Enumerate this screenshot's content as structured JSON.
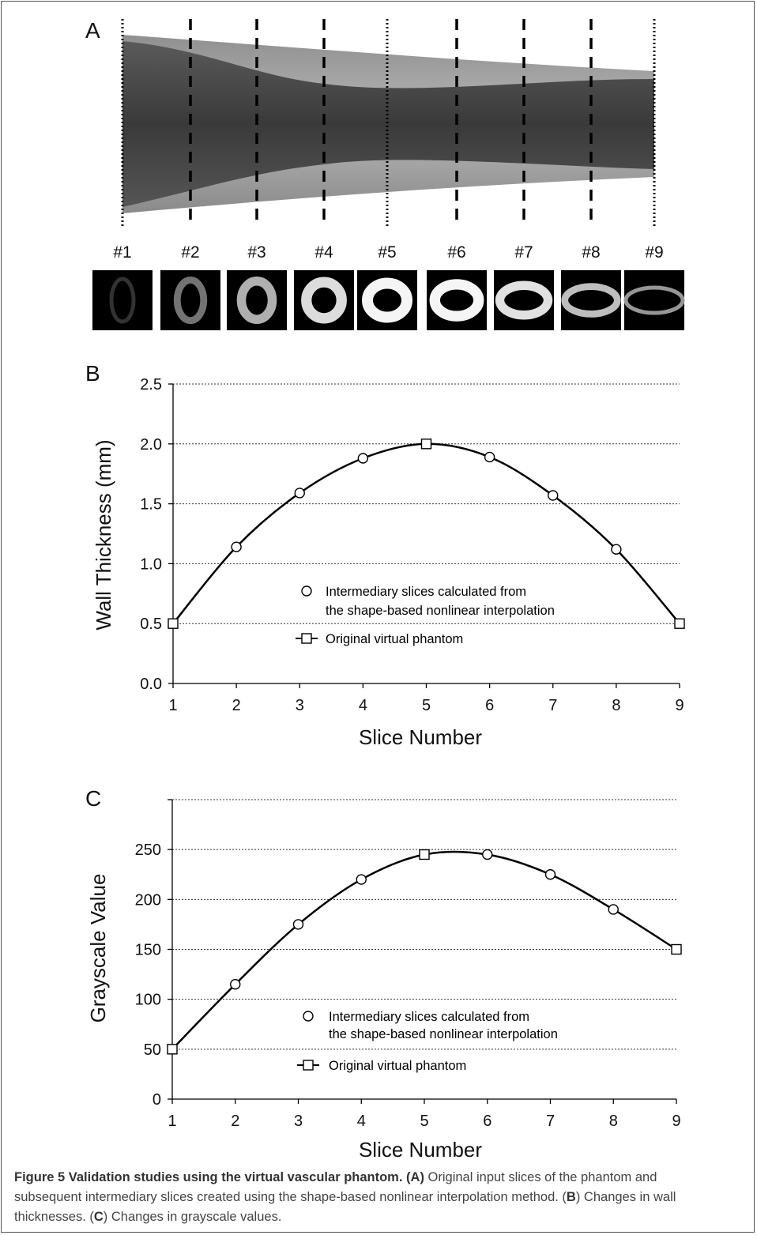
{
  "panel_a": {
    "label": "A",
    "slice_labels": [
      "#1",
      "#2",
      "#3",
      "#4",
      "#5",
      "#6",
      "#7",
      "#8",
      "#9"
    ],
    "ring_gray_levels": [
      50,
      115,
      175,
      220,
      245,
      245,
      225,
      190,
      150
    ],
    "ring_wall_thickness_mm": [
      0.5,
      1.14,
      1.59,
      1.88,
      2.0,
      1.89,
      1.57,
      1.12,
      0.5
    ]
  },
  "chart_data": [
    {
      "panel_label": "B",
      "type": "line",
      "x": [
        1,
        2,
        3,
        4,
        5,
        6,
        7,
        8,
        9
      ],
      "series": [
        {
          "name": "Intermediary slices calculated from the shape-based nonlinear interpolation",
          "marker": "circle",
          "points": [
            [
              2,
              1.14
            ],
            [
              3,
              1.59
            ],
            [
              4,
              1.88
            ],
            [
              6,
              1.89
            ],
            [
              7,
              1.57
            ],
            [
              8,
              1.12
            ]
          ]
        },
        {
          "name": "Original virtual phantom",
          "marker": "square",
          "points": [
            [
              1,
              0.5
            ],
            [
              5,
              2.0
            ],
            [
              9,
              0.5
            ]
          ]
        }
      ],
      "curve": [
        0.5,
        1.14,
        1.59,
        1.88,
        2.0,
        1.89,
        1.57,
        1.12,
        0.5
      ],
      "xlabel": "Slice Number",
      "ylabel": "Wall Thickness (mm)",
      "xlim": [
        1,
        9
      ],
      "ylim": [
        0,
        2.5
      ],
      "yticks": [
        "0.0",
        "0.5",
        "1.0",
        "1.5",
        "2.0",
        "2.5"
      ],
      "xticks": [
        "1",
        "2",
        "3",
        "4",
        "5",
        "6",
        "7",
        "8",
        "9"
      ],
      "grid": true,
      "legend": {
        "placement": "lower-center",
        "lines": [
          "Intermediary slices calculated  from",
          "the shape-based nonlinear interpolation",
          "Original virtual phantom"
        ]
      }
    },
    {
      "panel_label": "C",
      "type": "line",
      "x": [
        1,
        2,
        3,
        4,
        5,
        6,
        7,
        8,
        9
      ],
      "series": [
        {
          "name": "Intermediary slices calculated from the shape-based nonlinear interpolation",
          "marker": "circle",
          "points": [
            [
              2,
              115
            ],
            [
              3,
              175
            ],
            [
              4,
              220
            ],
            [
              6,
              245
            ],
            [
              7,
              225
            ],
            [
              8,
              190
            ]
          ]
        },
        {
          "name": "Original virtual phantom",
          "marker": "square",
          "points": [
            [
              1,
              50
            ],
            [
              5,
              245
            ],
            [
              9,
              150
            ]
          ]
        }
      ],
      "curve": [
        50,
        115,
        175,
        220,
        245,
        245,
        225,
        190,
        150
      ],
      "xlabel": "Slice Number",
      "ylabel": "Grayscale Value",
      "xlim": [
        1,
        9
      ],
      "ylim": [
        0,
        300
      ],
      "yticks": [
        "0",
        "50",
        "100",
        "150",
        "200",
        "250"
      ],
      "xticks": [
        "1",
        "2",
        "3",
        "4",
        "5",
        "6",
        "7",
        "8",
        "9"
      ],
      "grid": true,
      "legend": {
        "placement": "lower-center",
        "lines": [
          "Intermediary slices calculated from",
          "the shape-based nonlinear interpolation",
          "Original virtual phantom"
        ]
      }
    }
  ],
  "caption": {
    "title": "Figure 5 Validation studies using the virtual vascular phantom.",
    "text_1": " Original input slices of the phantom and subsequent intermediary slices created using the shape-based nonlinear interpolation method. (",
    "ref_a": "(A)",
    "ref_b": "B",
    "text_2": ") Changes in wall thicknesses. (",
    "ref_c": "C",
    "text_3": ") Changes in grayscale values."
  }
}
